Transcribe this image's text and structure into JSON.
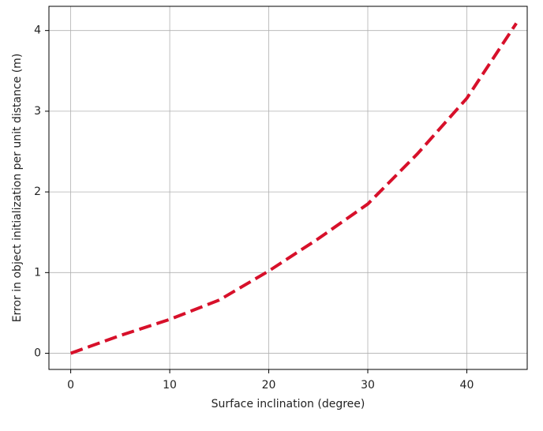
{
  "chart_data": {
    "type": "line",
    "x_label": "Surface inclination (degree)",
    "y_label": "Error in object initialization per unit distance (m)",
    "x": [
      0,
      5,
      10,
      15,
      20,
      25,
      30,
      35,
      40,
      45
    ],
    "series": [
      {
        "color": "#d7102a",
        "values": [
          0,
          0.22,
          0.42,
          0.66,
          1.02,
          1.42,
          1.85,
          2.47,
          3.16,
          4.09
        ]
      }
    ],
    "xlim": [
      -2.2,
      46.1
    ],
    "xticks": [
      0,
      10,
      20,
      30,
      40
    ],
    "ylim": [
      -0.2,
      4.3
    ],
    "yticks": [
      0,
      1,
      2,
      3,
      4
    ],
    "grid": true,
    "line_style": "dashed"
  }
}
